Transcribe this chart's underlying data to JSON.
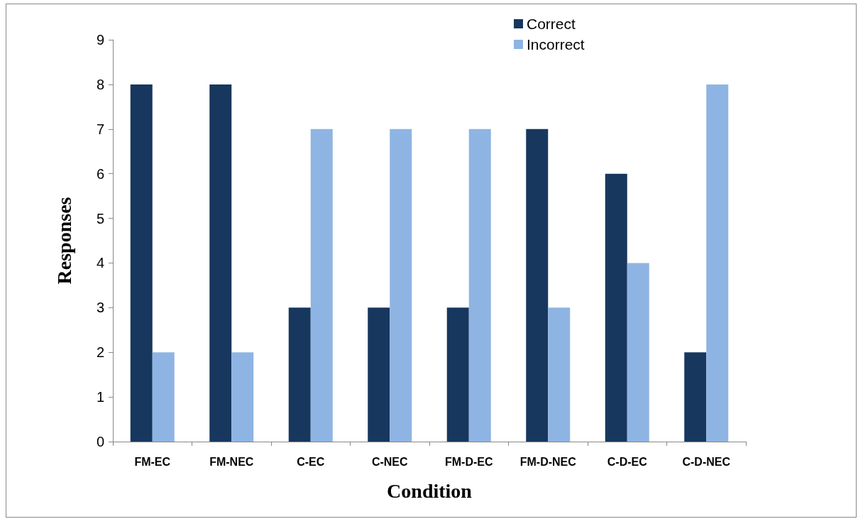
{
  "chart_data": {
    "type": "bar",
    "xlabel": "Condition",
    "ylabel": "Responses",
    "categories": [
      "FM-EC",
      "FM-NEC",
      "C-EC",
      "C-NEC",
      "FM-D-EC",
      "FM-D-NEC",
      "C-D-EC",
      "C-D-NEC"
    ],
    "series": [
      {
        "name": "Correct",
        "color": "#17375e",
        "values": [
          8,
          8,
          3,
          3,
          3,
          7,
          6,
          2
        ]
      },
      {
        "name": "Incorrect",
        "color": "#8eb4e3",
        "values": [
          2,
          2,
          7,
          7,
          7,
          3,
          4,
          8
        ]
      }
    ],
    "ylim": [
      0,
      9
    ],
    "yticks": [
      0,
      1,
      2,
      3,
      4,
      5,
      6,
      7,
      8,
      9
    ],
    "grid": false,
    "legend": "top right"
  }
}
